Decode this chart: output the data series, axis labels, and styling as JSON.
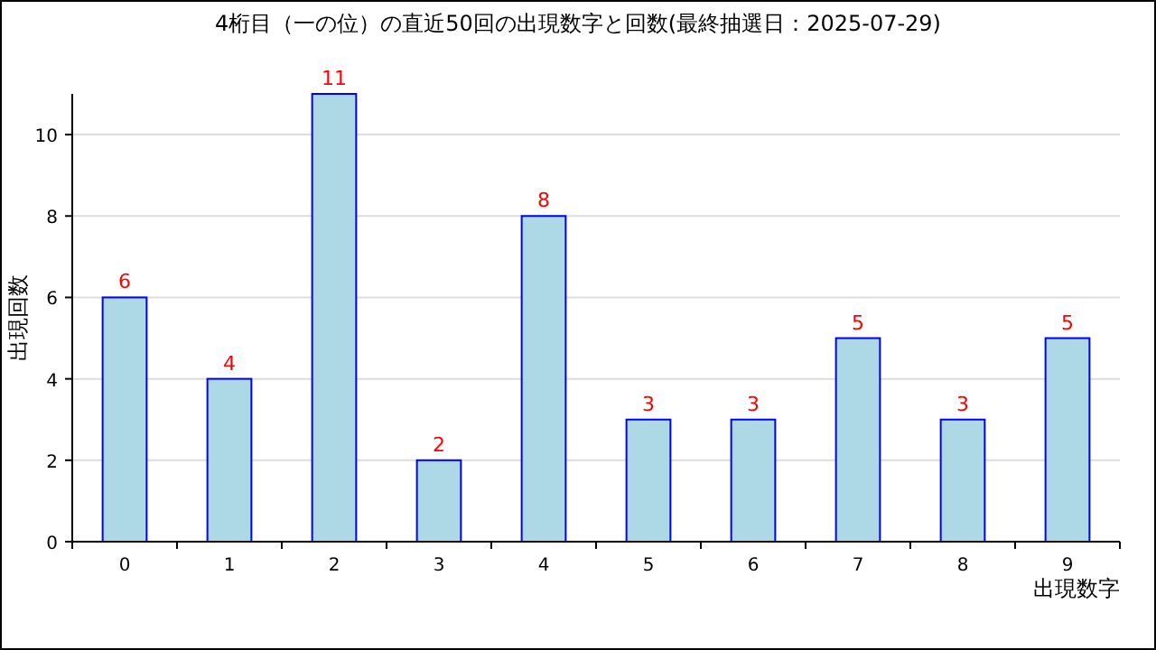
{
  "chart_data": {
    "type": "bar",
    "title": "4桁目（一の位）の直近50回の出現数字と回数(最終抽選日：2025-07-29)",
    "xlabel": "出現数字",
    "ylabel": "出現回数",
    "categories": [
      "0",
      "1",
      "2",
      "3",
      "4",
      "5",
      "6",
      "7",
      "8",
      "9"
    ],
    "values": [
      6,
      4,
      11,
      2,
      8,
      3,
      3,
      5,
      3,
      5
    ],
    "color": "#add8e6",
    "ylim": [
      0,
      11
    ],
    "yticks": [
      0,
      2,
      4,
      6,
      8,
      10
    ],
    "grid": "y",
    "data_labels": true
  }
}
